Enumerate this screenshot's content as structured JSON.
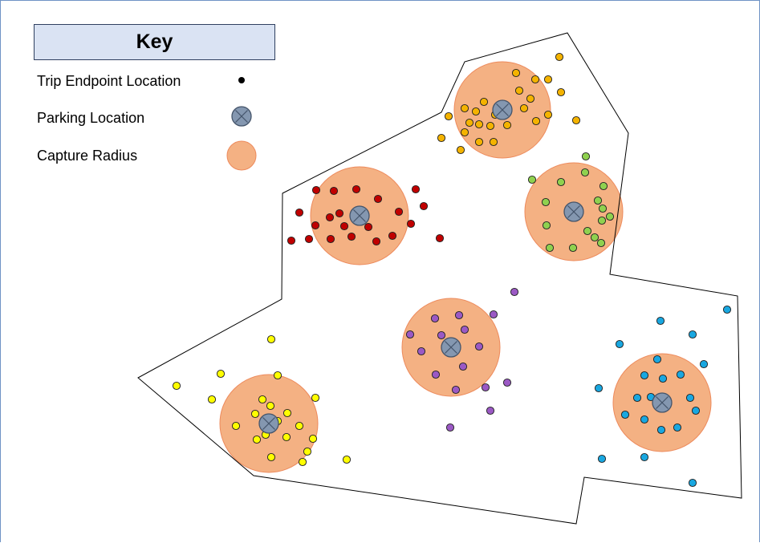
{
  "key": {
    "title": "Key",
    "items": [
      {
        "label": "Trip Endpoint Location",
        "symbol": "black-dot-icon"
      },
      {
        "label": "Parking Location",
        "symbol": "crossed-circle-icon"
      },
      {
        "label": "Capture Radius",
        "symbol": "shaded-circle-icon"
      }
    ]
  },
  "colors": {
    "boundary": "#000000",
    "capture_radius_fill": "#f4b183",
    "capture_radius_stroke": "#ed8a5c",
    "parking_fill": "#8497b0",
    "parking_stroke": "#44546a",
    "endpoint_stroke": "#1f1f1f",
    "key_fill": "#dae3f3"
  },
  "clusters": [
    {
      "name": "orange",
      "color": "#f4b300"
    },
    {
      "name": "red",
      "color": "#c00000"
    },
    {
      "name": "green",
      "color": "#8fd14f"
    },
    {
      "name": "purple",
      "color": "#9b59c4"
    },
    {
      "name": "yellow",
      "color": "#ffff00"
    },
    {
      "name": "blue",
      "color": "#19a7e0"
    }
  ]
}
